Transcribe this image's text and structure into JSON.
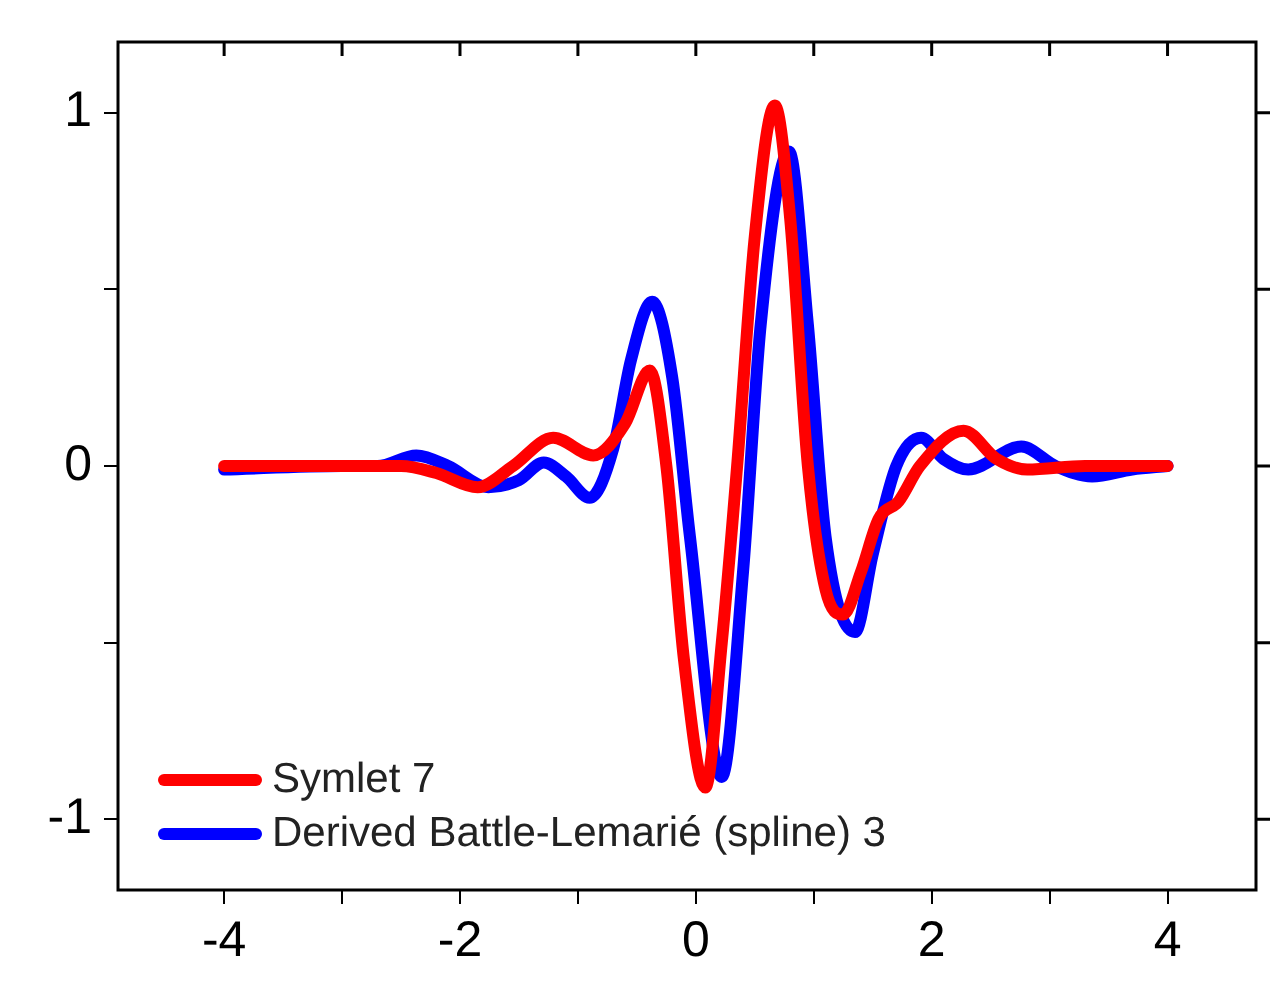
{
  "chart_data": {
    "type": "line",
    "xlim": [
      -4.9,
      4.75
    ],
    "ylim": [
      -1.2,
      1.2
    ],
    "xticks": [
      -4,
      {
        "value": -3,
        "label": null
      },
      -2,
      {
        "value": -1,
        "label": null
      },
      0,
      {
        "value": 1,
        "label": null
      },
      2,
      {
        "value": 3,
        "label": null
      },
      4
    ],
    "yticks": [
      -1,
      {
        "value": -0.5,
        "label": null
      },
      0,
      {
        "value": 0.5,
        "label": null
      },
      1
    ],
    "legend": "bottom left",
    "marker": "none",
    "line_style": "solid",
    "series": [
      {
        "name": "Symlet 7",
        "color": "#ff0000",
        "x": [
          -4,
          -3,
          -2.5,
          -2.2,
          -1.85,
          -1.55,
          -1.21,
          -0.87,
          -0.6,
          -0.39,
          -0.25,
          -0.1,
          0.08,
          0.22,
          0.35,
          0.5,
          0.67,
          0.8,
          0.95,
          1.1,
          1.25,
          1.4,
          1.55,
          1.72,
          1.9,
          2.27,
          2.55,
          2.81,
          3.3,
          4
        ],
        "values": [
          0,
          0,
          0,
          -0.02,
          -0.06,
          0,
          0.08,
          0.03,
          0.12,
          0.27,
          0,
          -0.55,
          -0.91,
          -0.5,
          0,
          0.65,
          1.02,
          0.7,
          0,
          -0.35,
          -0.42,
          -0.3,
          -0.15,
          -0.1,
          0,
          0.1,
          0.02,
          -0.01,
          0,
          0
        ]
      },
      {
        "name": "Derived Battle-Lemarié (spline) 3",
        "color": "#0000ff",
        "x": [
          -4,
          -3,
          -2.7,
          -2.37,
          -2.1,
          -1.76,
          -1.5,
          -1.29,
          -1.1,
          -0.9,
          -0.7,
          -0.55,
          -0.37,
          -0.2,
          -0.05,
          0.22,
          0.4,
          0.55,
          0.79,
          0.95,
          1.1,
          1.35,
          1.5,
          1.7,
          1.91,
          2.1,
          2.31,
          2.76,
          3.05,
          3.36,
          3.7,
          4
        ],
        "values": [
          -0.01,
          0,
          0,
          0.03,
          0,
          -0.06,
          -0.04,
          0.01,
          -0.03,
          -0.09,
          0.05,
          0.3,
          0.465,
          0.25,
          -0.2,
          -0.88,
          -0.3,
          0.4,
          0.89,
          0.4,
          -0.2,
          -0.47,
          -0.25,
          0,
          0.08,
          0.02,
          -0.01,
          0.055,
          0,
          -0.03,
          -0.01,
          0
        ]
      }
    ]
  }
}
